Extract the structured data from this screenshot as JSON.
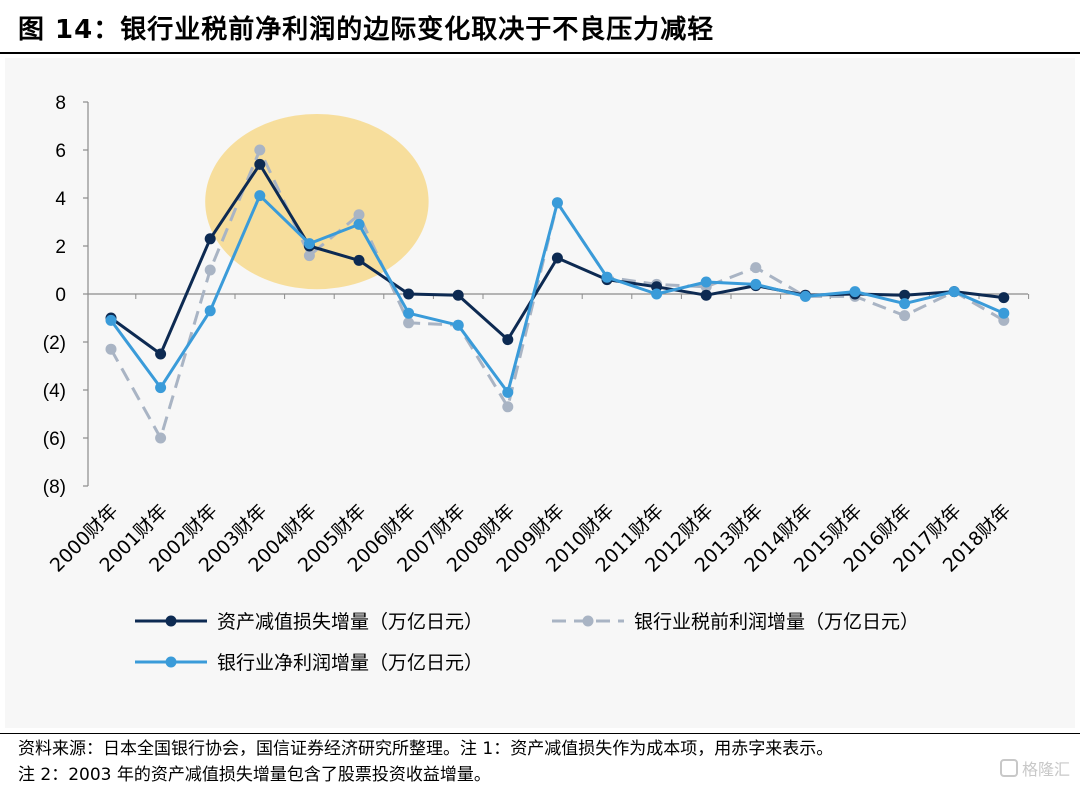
{
  "header": {
    "title": "图 14：银行业税前净利润的边际变化取决于不良压力减轻"
  },
  "chart_data": {
    "type": "line",
    "categories": [
      "2000财年",
      "2001财年",
      "2002财年",
      "2003财年",
      "2004财年",
      "2005财年",
      "2006财年",
      "2007财年",
      "2008财年",
      "2009财年",
      "2010财年",
      "2011财年",
      "2012财年",
      "2013财年",
      "2014财年",
      "2015财年",
      "2016财年",
      "2017财年",
      "2018财年"
    ],
    "ylim": [
      -8,
      8
    ],
    "yticks": [
      8,
      6,
      4,
      2,
      0,
      -2,
      -4,
      -6,
      -8
    ],
    "ytick_labels": [
      "8",
      "6",
      "4",
      "2",
      "0",
      "(2)",
      "(4)",
      "(6)",
      "(8)"
    ],
    "grid": false,
    "legend_position": "bottom",
    "highlight": {
      "shape": "ellipse",
      "x_range": [
        "2002财年",
        "2006财年"
      ],
      "y_range": [
        0.2,
        7.5
      ],
      "color": "#f7d98c"
    },
    "series": [
      {
        "name": "资产减值损失增量（万亿日元）",
        "color": "#0d2a52",
        "dash": false,
        "values": [
          -1.0,
          -2.5,
          2.3,
          5.4,
          2.0,
          1.4,
          0.0,
          -0.05,
          -1.9,
          1.5,
          0.6,
          0.3,
          -0.05,
          0.35,
          -0.05,
          0.0,
          -0.05,
          0.1,
          -0.15
        ]
      },
      {
        "name": "银行业税前利润增量（万亿日元）",
        "color": "#a9b4c4",
        "dash": true,
        "values": [
          -2.3,
          -6.0,
          1.0,
          6.0,
          1.6,
          3.3,
          -1.2,
          -1.3,
          -4.7,
          3.8,
          0.7,
          0.4,
          0.3,
          1.1,
          -0.1,
          -0.1,
          -0.9,
          0.1,
          -1.1
        ]
      },
      {
        "name": "银行业净利润增量（万亿日元）",
        "color": "#3a9bd9",
        "dash": false,
        "values": [
          -1.1,
          -3.9,
          -0.7,
          4.1,
          2.1,
          2.9,
          -0.8,
          -1.3,
          -4.1,
          3.8,
          0.7,
          0.0,
          0.5,
          0.4,
          -0.1,
          0.1,
          -0.4,
          0.1,
          -0.8
        ]
      }
    ]
  },
  "notes": {
    "line1": "资料来源：日本全国银行协会，国信证券经济研究所整理。注 1：资产减值损失作为成本项，用赤字来表示。",
    "line2": "注 2：2003 年的资产减值损失增量包含了股票投资收益增量。"
  },
  "watermark": {
    "text": "格隆汇"
  }
}
